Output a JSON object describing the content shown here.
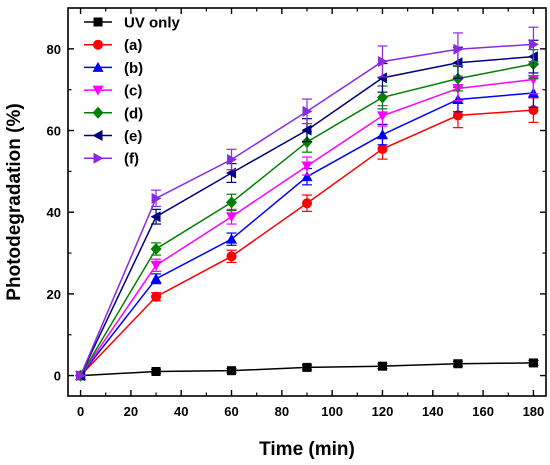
{
  "chart_data": {
    "type": "line",
    "xlabel": "Time (min)",
    "ylabel": "Photodegradation (%)",
    "xlim": [
      -5,
      185
    ],
    "ylim": [
      -5,
      90
    ],
    "xticks": [
      0,
      20,
      40,
      60,
      80,
      100,
      120,
      140,
      160,
      180
    ],
    "xtick_labels": [
      "0",
      "20",
      "40",
      "60",
      "80",
      "100",
      "120",
      "140",
      "160",
      "180"
    ],
    "yticks": [
      0,
      20,
      40,
      60,
      80
    ],
    "ytick_labels": [
      "0",
      "20",
      "40",
      "60",
      "80"
    ],
    "grid": false,
    "legend_placement": "top-left",
    "x": [
      0,
      30,
      60,
      90,
      120,
      150,
      180
    ],
    "series": [
      {
        "name": "UV only",
        "color": "#000000",
        "marker": "square",
        "values": [
          0,
          1.0,
          1.2,
          2.0,
          2.3,
          2.9,
          3.1
        ],
        "errors": [
          0,
          0.5,
          0.5,
          0.6,
          0.6,
          0.6,
          0.6
        ]
      },
      {
        "name": "(a)",
        "color": "#ff0000",
        "marker": "circle",
        "values": [
          0,
          19.3,
          29.2,
          42.2,
          55.5,
          63.7,
          65.0
        ],
        "errors": [
          0,
          1.0,
          1.5,
          2.0,
          2.5,
          3.0,
          3.0
        ]
      },
      {
        "name": "(b)",
        "color": "#0000ff",
        "marker": "triangle-up",
        "values": [
          0,
          23.7,
          33.4,
          48.7,
          59.0,
          67.6,
          69.2
        ],
        "errors": [
          0,
          1.2,
          1.5,
          2.0,
          2.5,
          3.0,
          3.5
        ]
      },
      {
        "name": "(c)",
        "color": "#ff00ff",
        "marker": "triangle-down",
        "values": [
          0,
          27.0,
          38.9,
          51.3,
          63.6,
          70.3,
          72.5
        ],
        "errors": [
          0,
          1.5,
          1.8,
          2.2,
          2.5,
          3.0,
          3.5
        ]
      },
      {
        "name": "(d)",
        "color": "#008000",
        "marker": "diamond",
        "values": [
          0,
          31.0,
          42.4,
          57.2,
          68.1,
          72.7,
          76.3
        ],
        "errors": [
          0,
          1.5,
          2.0,
          2.5,
          2.8,
          3.0,
          3.5
        ]
      },
      {
        "name": "(e)",
        "color": "#000080",
        "marker": "triangle-left",
        "values": [
          0,
          38.9,
          49.6,
          60.1,
          72.9,
          76.6,
          78.1
        ],
        "errors": [
          0,
          1.8,
          2.3,
          2.8,
          3.5,
          3.8,
          4.0
        ]
      },
      {
        "name": "(f)",
        "color": "#8a2be2",
        "marker": "triangle-right",
        "values": [
          0,
          43.4,
          52.9,
          64.7,
          76.9,
          79.9,
          81.1
        ],
        "errors": [
          0,
          2.0,
          2.5,
          3.0,
          3.8,
          4.0,
          4.2
        ]
      }
    ]
  }
}
